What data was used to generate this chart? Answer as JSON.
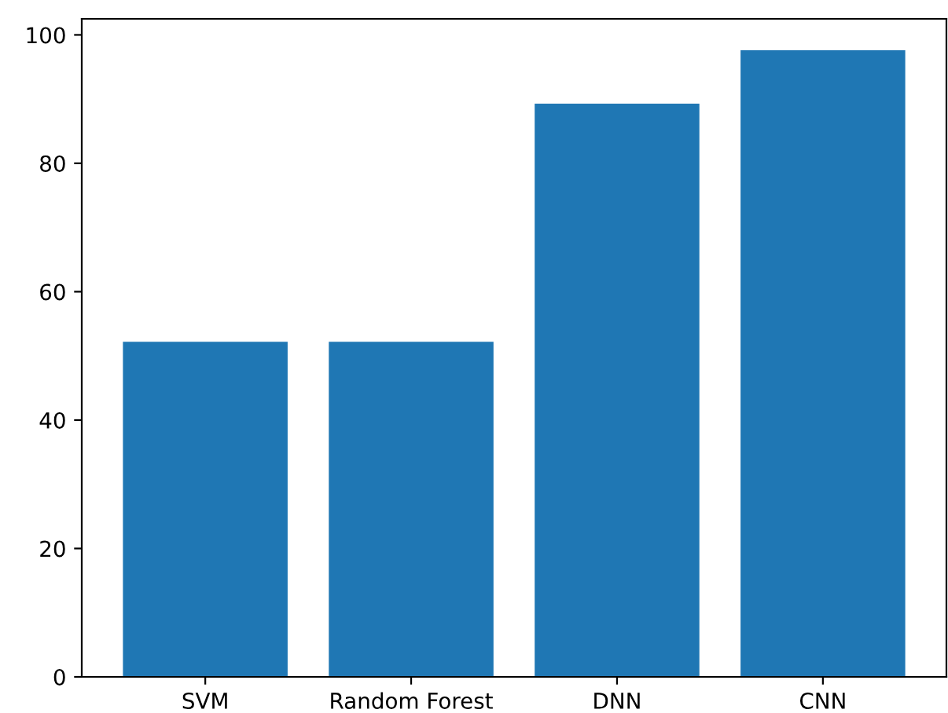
{
  "chart_data": {
    "type": "bar",
    "categories": [
      "SVM",
      "Random Forest",
      "DNN",
      "CNN"
    ],
    "values": [
      52.2,
      52.2,
      89.3,
      97.6
    ],
    "color": "#1f77b4",
    "ylim": [
      0,
      102.5
    ],
    "yticks": [
      0,
      20,
      40,
      60,
      80,
      100
    ],
    "grid": false
  }
}
